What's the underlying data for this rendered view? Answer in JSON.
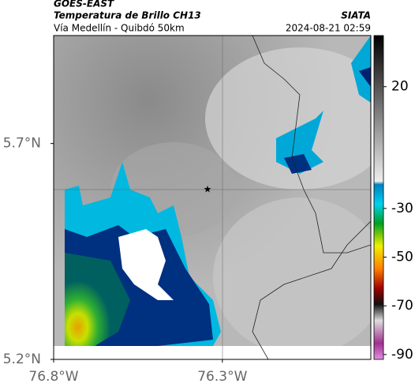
{
  "header": {
    "source": "GOES-EAST",
    "product": "Temperatura de Brillo CH13",
    "region": "Vía Medellín - Quibdó 50km",
    "org": "SIATA",
    "datetime": "2024-08-21 02:59"
  },
  "map": {
    "latlim": [
      5.2,
      5.95
    ],
    "lonlim": [
      -76.8,
      -75.86
    ],
    "lat_ticks": [
      {
        "value": 5.7,
        "label": "5.7°N"
      },
      {
        "value": 5.2,
        "label": "5.2°N"
      }
    ],
    "lon_ticks": [
      {
        "value": -76.8,
        "label": "76.8°W"
      },
      {
        "value": -76.3,
        "label": "76.3°W"
      }
    ]
  },
  "colorbar": {
    "lim": [
      -92,
      41
    ],
    "ticks": [
      20,
      -30,
      -50,
      -70,
      -90
    ]
  }
}
